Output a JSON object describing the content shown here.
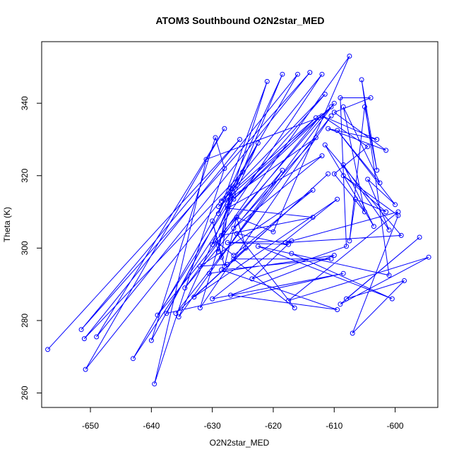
{
  "chart_data": {
    "type": "scatter",
    "title": "ATOM3 Southbound O2N2star_MED",
    "xlabel": "O2N2star_MED",
    "ylabel": "Theta (K)",
    "xlim": [
      -658,
      -593
    ],
    "ylim": [
      256,
      357
    ],
    "x_ticks": [
      -650,
      -640,
      -630,
      -620,
      -610,
      -600
    ],
    "x_tick_labels": [
      "-650",
      "-640",
      "-630",
      "-620",
      "-610",
      "-600"
    ],
    "y_ticks": [
      260,
      280,
      300,
      320,
      340
    ],
    "y_tick_labels": [
      "260",
      "280",
      "300",
      "320",
      "340"
    ],
    "grid": false,
    "style": "points connected by lines, open circles",
    "series_color": "#0000ff",
    "series": [
      {
        "x": [
          -657.0,
          -625.5,
          -651.5,
          -614.0,
          -649.0,
          -628.0,
          -650.8,
          -612.0,
          -643.0,
          -616.0,
          -651.0,
          -625.0,
          -640.0,
          -629.5,
          -628.0,
          -639.5,
          -631.0,
          -612.5,
          -639.0,
          -626.5,
          -632.0,
          -610.5,
          -636.0,
          -611.0,
          -633.0,
          -609.5,
          -630.0,
          -608.5,
          -637.5,
          -622.5,
          -635.5,
          -618.5,
          -634.5,
          -626.0,
          -628.0,
          -630.0,
          -628.5,
          -627.0,
          -629.0,
          -629.5,
          -626.5,
          -613.5,
          -632.0,
          -627.5,
          -624.5,
          -626.0,
          -620.0,
          -607.5,
          -628.5,
          -613.5,
          -627.5,
          -612.0,
          -626.5,
          -613.0,
          -629.0,
          -610.5,
          -626.5,
          -613.0,
          -628.5,
          -611.5,
          -627.5,
          -621.0,
          -629.0,
          -618.5,
          -630.0,
          -610.0,
          -630.5,
          -610.0,
          -627.0,
          -609.5,
          -628.5,
          -610.5,
          -626.5,
          -616.5,
          -626.0,
          -617.5,
          -627.5,
          -617.0,
          -623.5,
          -608.0,
          -609.0,
          -604.0,
          -610.0,
          -601.5,
          -611.0,
          -603.0,
          -612.0,
          -604.5,
          -610.0,
          -605.0,
          -608.5,
          -602.5,
          -609.5,
          -600.0,
          -604.5,
          -601.0,
          -608.5,
          -603.5,
          -611.5,
          -599.0,
          -618.0,
          -599.5,
          -617.5,
          -594.5,
          -609.0,
          -596.0,
          -608.0,
          -598.5,
          -607.0,
          -599.5,
          -608.5,
          -601.5,
          -606.5,
          -607.5,
          -605.0,
          -603.0,
          -605.5,
          -601.0,
          -622.5,
          -600.5,
          -617.0
        ],
        "y": [
          272.0,
          330.0,
          277.5,
          348.5,
          275.5,
          333.0,
          266.5,
          348.0,
          269.5,
          348.0,
          275.0,
          321.0,
          274.5,
          330.5,
          322.0,
          262.5,
          324.5,
          336.0,
          281.5,
          314.5,
          283.5,
          336.5,
          282.0,
          320.5,
          286.5,
          313.5,
          286.0,
          293.0,
          282.0,
          329.0,
          281.0,
          321.5,
          289.0,
          308.5,
          295.0,
          307.5,
          297.5,
          316.5,
          299.0,
          302.0,
          298.0,
          316.0,
          295.0,
          295.5,
          300.0,
          308.5,
          304.5,
          353.0,
          303.5,
          308.5,
          311.0,
          325.5,
          305.5,
          330.5,
          311.5,
          339.0,
          313.5,
          336.0,
          313.0,
          342.5,
          311.5,
          346.0,
          309.5,
          348.0,
          301.0,
          340.0,
          293.0,
          298.0,
          287.0,
          283.0,
          294.0,
          297.0,
          297.0,
          283.5,
          304.0,
          301.0,
          301.5,
          302.0,
          291.5,
          300.5,
          341.5,
          341.5,
          337.5,
          327.0,
          333.0,
          330.0,
          336.5,
          328.0,
          320.5,
          310.0,
          339.0,
          318.0,
          332.5,
          312.0,
          319.0,
          305.0,
          323.0,
          306.0,
          328.5,
          303.5,
          301.5,
          310.0,
          285.5,
          297.5,
          284.5,
          303.0,
          286.0,
          291.0,
          276.5,
          309.0,
          320.0,
          310.0,
          313.5,
          302.0,
          339.0,
          321.5,
          346.5,
          292.5,
          300.5,
          286.0,
          298.5
        ]
      }
    ]
  }
}
